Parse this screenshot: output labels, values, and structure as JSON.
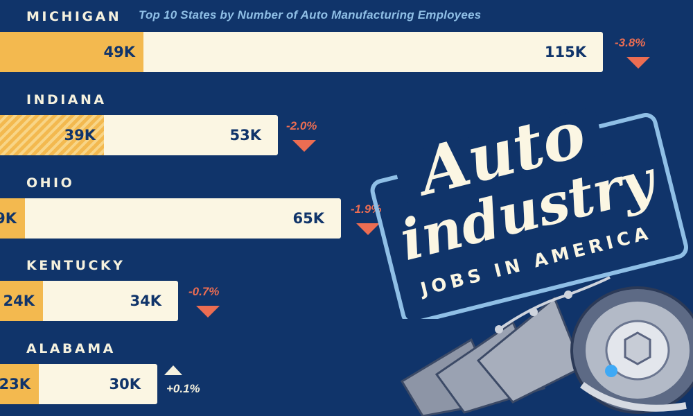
{
  "header": {
    "subtitle": "Top 10 States by Number of Auto Manufacturing Employees"
  },
  "artwork": {
    "title_line1": "Auto",
    "title_line2": "industry",
    "tagline": "JOBS IN AMERICA"
  },
  "colors": {
    "background": "#10346a",
    "bar_total": "#fbf6e3",
    "bar_highlight": "#f3b94f",
    "decrease": "#ec6d52",
    "increase": "#f5f1de",
    "subtitle": "#8fbfe6"
  },
  "chart_data": {
    "type": "bar",
    "orientation": "horizontal",
    "title": "Top 10 States by Number of Auto Manufacturing Employees",
    "categories": [
      "MICHIGAN",
      "INDIANA",
      "OHIO",
      "KENTUCKY",
      "ALABAMA"
    ],
    "series": [
      {
        "values": [
          115,
          53,
          65,
          34,
          30
        ],
        "labels": [
          "115K",
          "53K",
          "65K",
          "34K",
          "30K"
        ]
      },
      {
        "values": [
          49,
          39,
          null,
          24,
          23
        ],
        "labels": [
          "49K",
          "39K",
          "9K",
          "24K",
          "23K"
        ]
      }
    ],
    "changes": [
      "-3.8%",
      "-2.0%",
      "-1.9%",
      "-0.7%",
      "+0.1%"
    ],
    "change_direction": [
      "down",
      "down",
      "down",
      "down",
      "up"
    ],
    "xlim": [
      0,
      115
    ]
  }
}
